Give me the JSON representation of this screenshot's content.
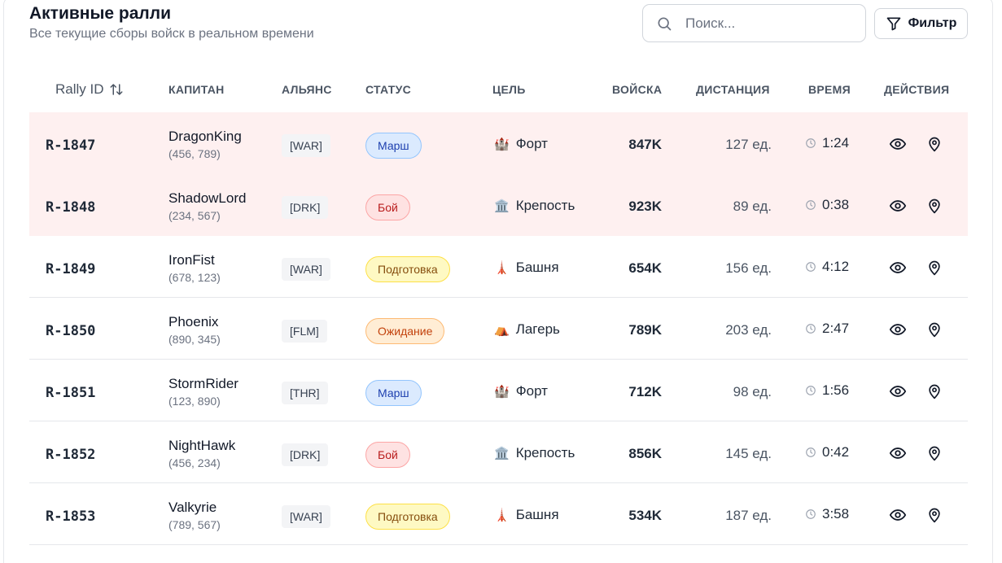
{
  "header": {
    "title": "Активные ралли",
    "subtitle": "Все текущие сборы войск в реальном времени"
  },
  "search": {
    "placeholder": "Поиск...",
    "icon": "search-icon"
  },
  "filter": {
    "label": "Фильтр",
    "icon": "filter-icon"
  },
  "columns": {
    "rally_id": "Rally ID",
    "captain": "КАПИТАН",
    "alliance": "АЛЬЯНС",
    "status": "СТАТУС",
    "target": "ЦЕЛЬ",
    "troops": "ВОЙСКА",
    "distance": "ДИСТАНЦИЯ",
    "time": "ВРЕМЯ",
    "actions": "ДЕЙСТВИЯ"
  },
  "rows": [
    {
      "id": "R-1847",
      "captain": "DragonKing",
      "coords": "(456, 789)",
      "alliance": "[WAR]",
      "status": "Марш",
      "status_kind": "march",
      "target_icon": "🏰",
      "target": "Форт",
      "troops": "847K",
      "distance": "127 ед.",
      "time": "1:24",
      "highlight": true
    },
    {
      "id": "R-1848",
      "captain": "ShadowLord",
      "coords": "(234, 567)",
      "alliance": "[DRK]",
      "status": "Бой",
      "status_kind": "battle",
      "target_icon": "🏛️",
      "target": "Крепость",
      "troops": "923K",
      "distance": "89 ед.",
      "time": "0:38",
      "highlight": true
    },
    {
      "id": "R-1849",
      "captain": "IronFist",
      "coords": "(678, 123)",
      "alliance": "[WAR]",
      "status": "Подготовка",
      "status_kind": "prep",
      "target_icon": "🗼",
      "target": "Башня",
      "troops": "654K",
      "distance": "156 ед.",
      "time": "4:12",
      "highlight": false
    },
    {
      "id": "R-1850",
      "captain": "Phoenix",
      "coords": "(890, 345)",
      "alliance": "[FLM]",
      "status": "Ожидание",
      "status_kind": "wait",
      "target_icon": "⛺",
      "target": "Лагерь",
      "troops": "789K",
      "distance": "203 ед.",
      "time": "2:47",
      "highlight": false
    },
    {
      "id": "R-1851",
      "captain": "StormRider",
      "coords": "(123, 890)",
      "alliance": "[THR]",
      "status": "Марш",
      "status_kind": "march",
      "target_icon": "🏰",
      "target": "Форт",
      "troops": "712K",
      "distance": "98 ед.",
      "time": "1:56",
      "highlight": false
    },
    {
      "id": "R-1852",
      "captain": "NightHawk",
      "coords": "(456, 234)",
      "alliance": "[DRK]",
      "status": "Бой",
      "status_kind": "battle",
      "target_icon": "🏛️",
      "target": "Крепость",
      "troops": "856K",
      "distance": "145 ед.",
      "time": "0:42",
      "highlight": false
    },
    {
      "id": "R-1853",
      "captain": "Valkyrie",
      "coords": "(789, 567)",
      "alliance": "[WAR]",
      "status": "Подготовка",
      "status_kind": "prep",
      "target_icon": "🗼",
      "target": "Башня",
      "troops": "534K",
      "distance": "187 ед.",
      "time": "3:58",
      "highlight": false
    }
  ],
  "colors": {
    "highlight_row": "#fef0f0",
    "march": "#dbeafe",
    "battle": "#fee2e2",
    "prep": "#fef9c3",
    "wait": "#ffedd5"
  }
}
